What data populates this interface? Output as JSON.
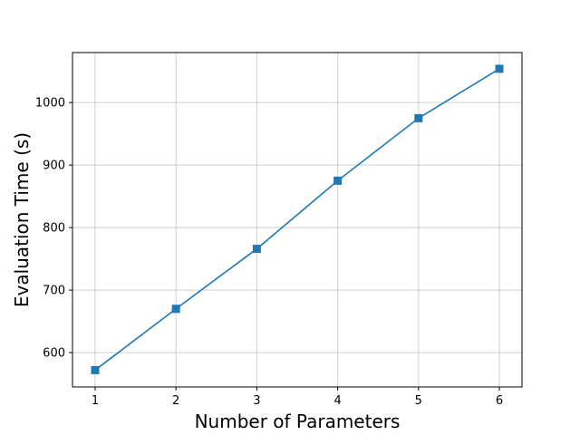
{
  "chart_data": {
    "type": "line",
    "title": "",
    "xlabel": "Number of Parameters",
    "ylabel": "Evaluation Time (s)",
    "x": [
      1,
      2,
      3,
      4,
      5,
      6
    ],
    "series": [
      {
        "values": [
          572,
          670,
          766,
          875,
          975,
          1054
        ],
        "color": "#1f77b4",
        "marker": "square"
      }
    ],
    "xlim": [
      0.72,
      6.28
    ],
    "ylim": [
      545,
      1080
    ],
    "xticks": [
      1,
      2,
      3,
      4,
      5,
      6
    ],
    "yticks": [
      600,
      700,
      800,
      900,
      1000
    ],
    "xtick_labels": [
      "1",
      "2",
      "3",
      "4",
      "5",
      "6"
    ],
    "ytick_labels": [
      "600",
      "700",
      "800",
      "900",
      "1000"
    ],
    "grid": true,
    "legend": "none"
  }
}
